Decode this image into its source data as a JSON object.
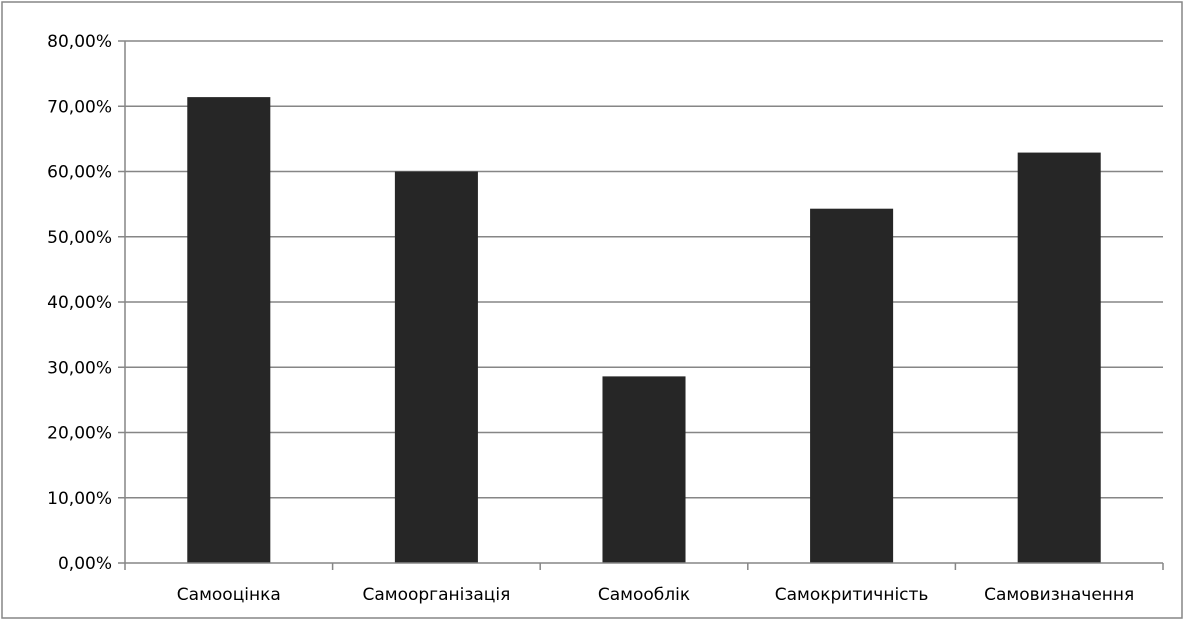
{
  "chart_data": {
    "type": "bar",
    "categories": [
      "Самооцінка",
      "Самоорганізація",
      "Самооблік",
      "Самокритичність",
      "Самовизначення"
    ],
    "values": [
      71.4,
      60.0,
      28.6,
      54.3,
      62.9
    ],
    "ylim": [
      0,
      80
    ],
    "yticks": [
      0,
      10,
      20,
      30,
      40,
      50,
      60,
      70,
      80
    ],
    "ytick_labels": [
      "0,00%",
      "10,00%",
      "20,00%",
      "30,00%",
      "40,00%",
      "50,00%",
      "60,00%",
      "70,00%",
      "80,00%"
    ],
    "grid": true,
    "legend": "none",
    "bar_color": "#262626",
    "grid_color": "#868686"
  }
}
